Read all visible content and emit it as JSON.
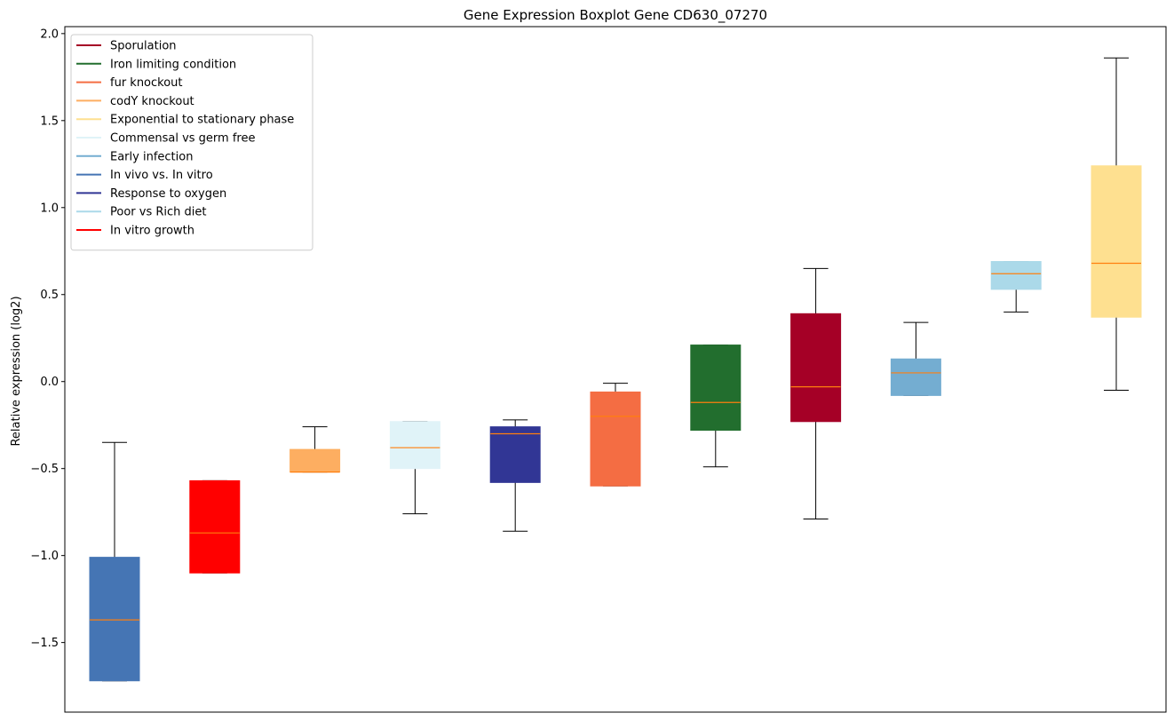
{
  "chart_data": {
    "type": "boxplot",
    "title": "Gene Expression Boxplot Gene CD630_07270",
    "xlabel": "",
    "ylabel": "Relative expression (log2)",
    "ylim": [
      -1.9,
      2.04
    ],
    "yticks": [
      -1.5,
      -1.0,
      -0.5,
      0.0,
      0.5,
      1.0,
      1.5,
      2.0
    ],
    "ytick_labels": [
      "−1.5",
      "−1.0",
      "−0.5",
      "0.0",
      "0.5",
      "1.0",
      "1.5",
      "2.0"
    ],
    "xticks_shown": false,
    "grid": false,
    "legend_position": "upper-left",
    "median_color": "#ff7f0e",
    "legend": [
      {
        "label": "Sporulation",
        "color": "#a50026"
      },
      {
        "label": "Iron limiting condition",
        "color": "#226e2e"
      },
      {
        "label": "fur knockout",
        "color": "#f46d43"
      },
      {
        "label": "codY knockout",
        "color": "#fdae61"
      },
      {
        "label": "Exponential to stationary phase",
        "color": "#fee090"
      },
      {
        "label": "Commensal vs germ free",
        "color": "#e0f3f8"
      },
      {
        "label": "Early infection",
        "color": "#74add1"
      },
      {
        "label": "In vivo vs. In vitro",
        "color": "#4575b4"
      },
      {
        "label": "Response to oxygen",
        "color": "#313695"
      },
      {
        "label": "Poor vs Rich diet",
        "color": "#abd9e9"
      },
      {
        "label": "In vitro growth",
        "color": "#ff0000"
      }
    ],
    "boxes": [
      {
        "group": "In vivo vs. In vitro",
        "color": "#4575b4",
        "whisker_low": -1.72,
        "q1": -1.72,
        "median": -1.37,
        "q3": -1.01,
        "whisker_high": -0.35
      },
      {
        "group": "In vitro growth",
        "color": "#ff0000",
        "whisker_low": -1.1,
        "q1": -1.1,
        "median": -0.87,
        "q3": -0.57,
        "whisker_high": -0.57
      },
      {
        "group": "codY knockout",
        "color": "#fdae61",
        "whisker_low": -0.52,
        "q1": -0.52,
        "median": -0.52,
        "q3": -0.39,
        "whisker_high": -0.26
      },
      {
        "group": "Commensal vs germ free",
        "color": "#e0f3f8",
        "whisker_low": -0.76,
        "q1": -0.5,
        "median": -0.38,
        "q3": -0.23,
        "whisker_high": -0.23
      },
      {
        "group": "Response to oxygen",
        "color": "#313695",
        "whisker_low": -0.86,
        "q1": -0.58,
        "median": -0.3,
        "q3": -0.26,
        "whisker_high": -0.22
      },
      {
        "group": "fur knockout",
        "color": "#f46d43",
        "whisker_low": -0.6,
        "q1": -0.6,
        "median": -0.2,
        "q3": -0.06,
        "whisker_high": -0.01
      },
      {
        "group": "Iron limiting condition",
        "color": "#226e2e",
        "whisker_low": -0.49,
        "q1": -0.28,
        "median": -0.12,
        "q3": 0.21,
        "whisker_high": 0.21
      },
      {
        "group": "Sporulation",
        "color": "#a50026",
        "whisker_low": -0.79,
        "q1": -0.23,
        "median": -0.03,
        "q3": 0.39,
        "whisker_high": 0.65
      },
      {
        "group": "Early infection",
        "color": "#74add1",
        "whisker_low": -0.08,
        "q1": -0.08,
        "median": 0.05,
        "q3": 0.13,
        "whisker_high": 0.34
      },
      {
        "group": "Poor vs Rich diet",
        "color": "#abd9e9",
        "whisker_low": 0.4,
        "q1": 0.53,
        "median": 0.62,
        "q3": 0.69,
        "whisker_high": 0.69
      },
      {
        "group": "Exponential to stationary phase",
        "color": "#fee090",
        "whisker_low": -0.05,
        "q1": 0.37,
        "median": 0.68,
        "q3": 1.24,
        "whisker_high": 1.86
      }
    ]
  }
}
